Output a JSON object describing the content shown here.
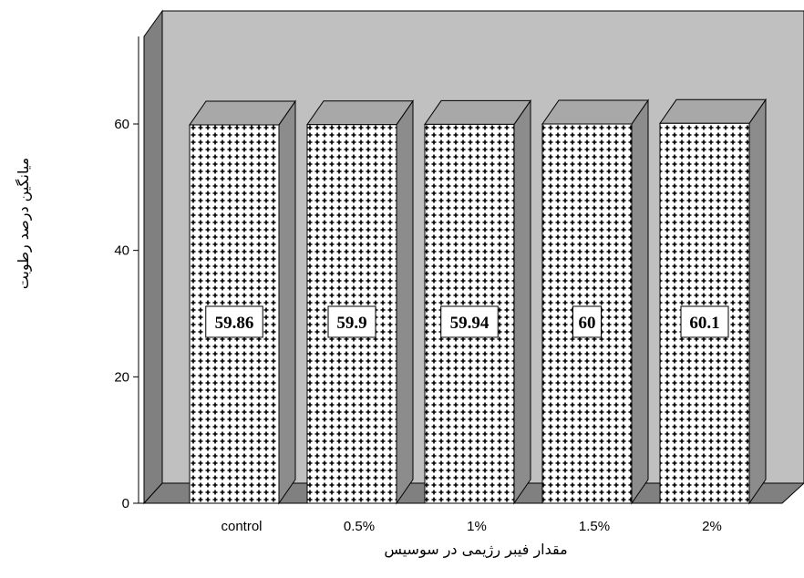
{
  "chart_data": {
    "type": "bar",
    "style": "3d",
    "categories": [
      "control",
      "0.5%",
      "1%",
      "1.5%",
      "2%"
    ],
    "values": [
      59.86,
      59.9,
      59.94,
      60,
      60.1
    ],
    "data_labels": [
      "59.86",
      "59.9",
      "59.94",
      "60",
      "60.1"
    ],
    "xlabel": "مقدار فیبر رژیمی در سوسیس",
    "ylabel": "میانگین درصد رطوبت",
    "ylim": [
      0,
      60
    ],
    "yticks": [
      0,
      20,
      40,
      60
    ],
    "grid": false,
    "legend": "none",
    "colors": {
      "wall": "#c0c0c0",
      "wall_side": "#808080",
      "floor": "#808080",
      "bar_face": "#ffffff",
      "bar_pattern": "#000000",
      "bar_top": "#a8a8a8",
      "bar_side": "#8c8c8c"
    }
  }
}
